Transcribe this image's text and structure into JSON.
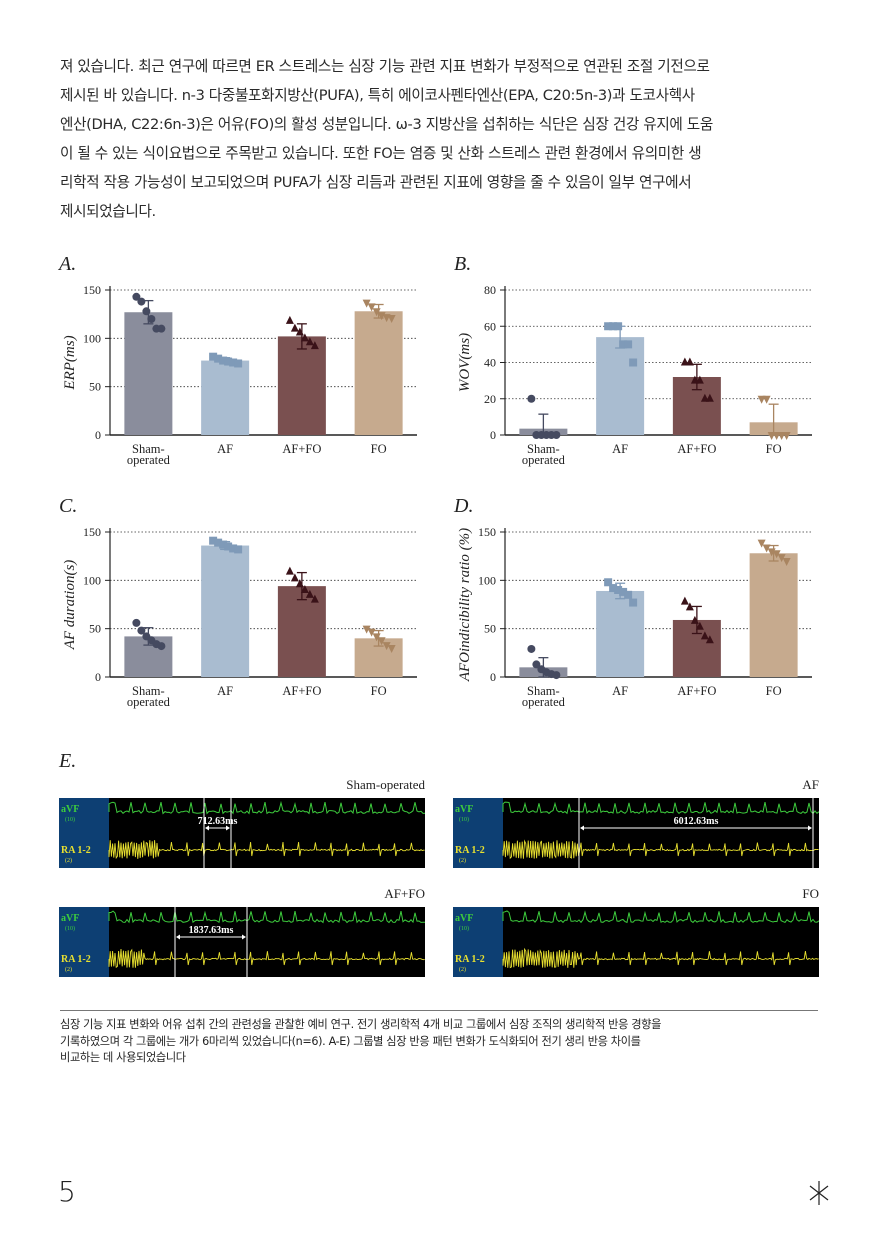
{
  "intro_lines": [
    "져 있습니다. 최근 연구에 따르면 ER 스트레스는 심장 기능 관련 지표 변화가 부정적으로 연관된 조절 기전으로",
    "제시된 바 있습니다. n-3 다중불포화지방산(PUFA), 특히 에이코사펜타엔산(EPA, C20:5n-3)과 도코사헥사",
    "엔산(DHA, C22:6n-3)은 어유(FO)의 활성 성분입니다. ω-3 지방산을 섭취하는 식단은 심장 건강 유지에 도움",
    "이 될 수 있는 식이요법으로 주목받고 있습니다. 또한 FO는 염증 및 산화 스트레스 관련 환경에서 유의미한 생",
    "리학적 작용 가능성이 보고되었으며 PUFA가 심장 리듬과 관련된 지표에 영향을 줄 수 있음이 일부 연구에서",
    "제시되었습니다."
  ],
  "colors": {
    "sham": "#8a8d9c",
    "af": "#a9bcd0",
    "affo": "#7a5050",
    "fo": "#c6aa8e",
    "sham_dot": "#454a60",
    "af_dot": "#7f9ab8",
    "affo_dot": "#3a1218",
    "fo_dot": "#a98561",
    "ecg_green": "#3dcc3d",
    "ecg_yellow": "#e8e030",
    "ecg_label_bg": "#0d3f73"
  },
  "chart_data": [
    {
      "panel": "A.",
      "type": "bar",
      "categories": [
        "Sham-\noperated",
        "AF",
        "AF+FO",
        "FO"
      ],
      "values": [
        127,
        77,
        102,
        128
      ],
      "errors": [
        12,
        3,
        13,
        7
      ],
      "points": [
        [
          143,
          138,
          128,
          120,
          110,
          110
        ],
        [
          81,
          79,
          77,
          76,
          75,
          74
        ],
        [
          118,
          110,
          106,
          100,
          96,
          92
        ],
        [
          137,
          133,
          128,
          124,
          122,
          121
        ]
      ],
      "markers": [
        "circle",
        "square",
        "triangle",
        "triangle-down"
      ],
      "ylabel": "ERP(ms)",
      "yticks": [
        0,
        50,
        100,
        150
      ],
      "ylim": [
        0,
        150
      ],
      "grid": "dotted"
    },
    {
      "panel": "B.",
      "type": "bar",
      "categories": [
        "Sham-\noperated",
        "AF",
        "AF+FO",
        "FO"
      ],
      "values": [
        3.5,
        54,
        32,
        7
      ],
      "errors": [
        8,
        6,
        7,
        10
      ],
      "points": [
        [
          20,
          0,
          0,
          0,
          0,
          0
        ],
        [
          60,
          60,
          60,
          50,
          50,
          40
        ],
        [
          40,
          40,
          30,
          30,
          20,
          20
        ],
        [
          20,
          20,
          0,
          0,
          0,
          0
        ]
      ],
      "markers": [
        "circle",
        "square",
        "triangle",
        "triangle-down"
      ],
      "ylabel": "WOV(ms)",
      "yticks": [
        0,
        20,
        40,
        60,
        80
      ],
      "ylim": [
        0,
        80
      ],
      "grid": "dotted"
    },
    {
      "panel": "C.",
      "type": "bar",
      "categories": [
        "Sham-\noperated",
        "AF",
        "AF+FO",
        "FO"
      ],
      "values": [
        42,
        136,
        94,
        40
      ],
      "errors": [
        9,
        4,
        14,
        8
      ],
      "points": [
        [
          56,
          48,
          42,
          38,
          34,
          32
        ],
        [
          141,
          139,
          137,
          135,
          133,
          132
        ],
        [
          109,
          102,
          96,
          90,
          85,
          80
        ],
        [
          50,
          47,
          42,
          38,
          33,
          30
        ]
      ],
      "markers": [
        "circle",
        "square",
        "triangle",
        "triangle-down"
      ],
      "ylabel": "AF duration(s)",
      "yticks": [
        0,
        50,
        100,
        150
      ],
      "ylim": [
        0,
        150
      ],
      "grid": "dotted"
    },
    {
      "panel": "D.",
      "type": "bar",
      "categories": [
        "Sham-\noperated",
        "AF",
        "AF+FO",
        "FO"
      ],
      "values": [
        10,
        89,
        59,
        128
      ],
      "errors": [
        10,
        8,
        14,
        8
      ],
      "points": [
        [
          29,
          13,
          8,
          5,
          3,
          2
        ],
        [
          98,
          92,
          90,
          88,
          85,
          77
        ],
        [
          78,
          72,
          58,
          52,
          42,
          38
        ],
        [
          139,
          134,
          130,
          128,
          124,
          120
        ]
      ],
      "markers": [
        "circle",
        "square",
        "triangle",
        "triangle-down"
      ],
      "ylabel": "AFOindicibility ratio (%)",
      "yticks": [
        0,
        50,
        100,
        150
      ],
      "ylim": [
        0,
        150
      ],
      "grid": "dotted"
    }
  ],
  "panel_e": {
    "label": "E.",
    "traces": [
      {
        "title": "Sham-operated",
        "measure": "712.63ms",
        "lead1": "aVF",
        "gain1": "(10)",
        "lead2": "RA 1-2",
        "gain2": "(2)"
      },
      {
        "title": "AF",
        "measure": "6012.63ms",
        "lead1": "aVF",
        "gain1": "(10)",
        "lead2": "RA 1-2",
        "gain2": "(2)"
      },
      {
        "title": "AF+FO",
        "measure": "1837.63ms",
        "lead1": "aVF",
        "gain1": "(10)",
        "lead2": "RA 1-2",
        "gain2": "(2)"
      },
      {
        "title": "FO",
        "measure": "",
        "lead1": "aVF",
        "gain1": "(10)",
        "lead2": "RA 1-2",
        "gain2": "(2)"
      }
    ]
  },
  "caption_lines": [
    "심장 기능 지표 변화와 어유 섭취 간의 관련성을 관찰한 예비 연구. 전기 생리학적 4개 비교 그룹에서 심장 조직의 생리학적 반응 경향을",
    "기록하였으며 각 그룹에는 개가 6마리씩 있었습니다(n=6). A-E) 그룹별 심장 반응 패턴 변화가 도식화되어 전기 생리 반응 차이를",
    "비교하는 데 사용되었습니다"
  ],
  "page_number": "5"
}
